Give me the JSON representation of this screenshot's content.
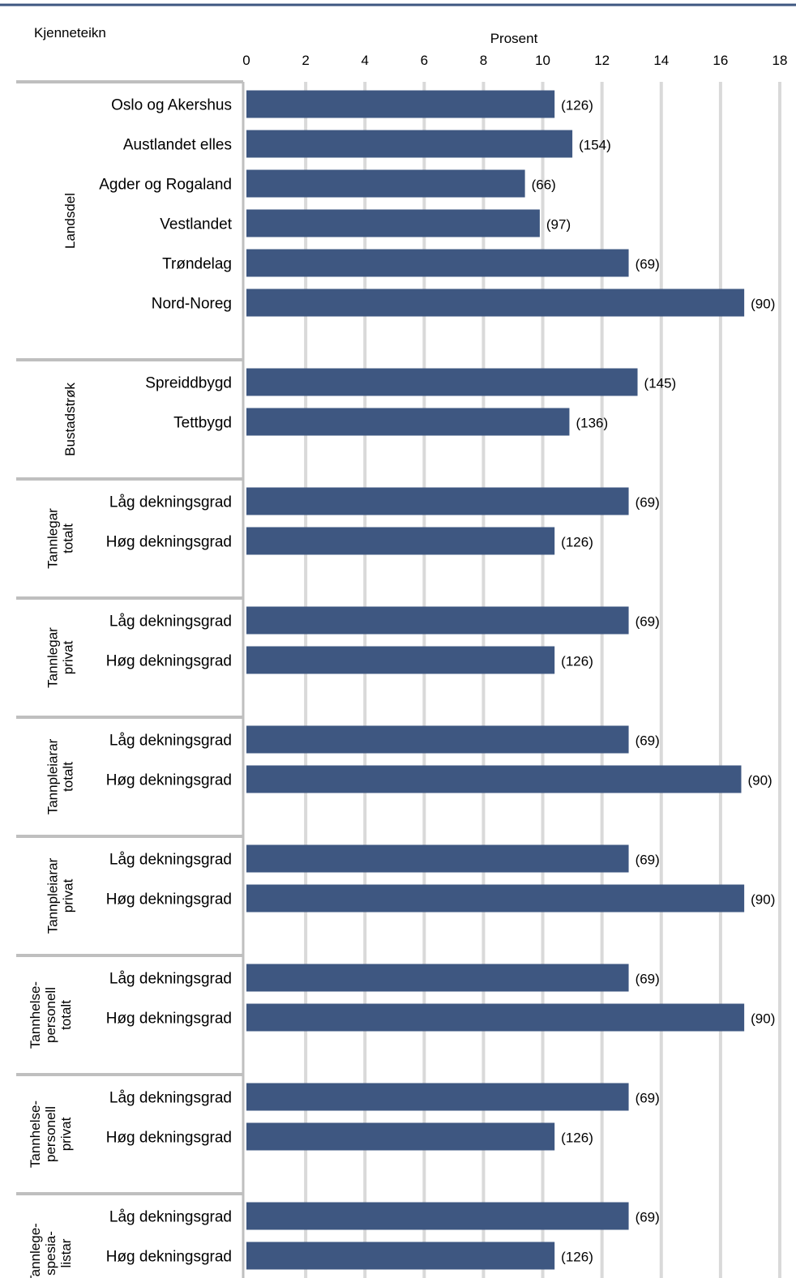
{
  "chart_data": {
    "type": "bar",
    "orientation": "horizontal",
    "title": "",
    "header_left": "Kjenneteikn",
    "xlabel": "Prosent",
    "xlim": [
      0,
      18
    ],
    "xticks": [
      "0",
      "2",
      "4",
      "6",
      "8",
      "10",
      "12",
      "14",
      "16",
      "18"
    ],
    "grid": true,
    "bar_color": "#3e5781",
    "groups": [
      {
        "name": "Landsdel",
        "name_lines": [
          "Landsdel"
        ],
        "items": [
          {
            "label": "Oslo og Akershus",
            "value": 10.4,
            "n": "(126)"
          },
          {
            "label": "Austlandet elles",
            "value": 11.0,
            "n": "(154)"
          },
          {
            "label": "Agder og Rogaland",
            "value": 9.4,
            "n": "(66)"
          },
          {
            "label": "Vestlandet",
            "value": 9.9,
            "n": "(97)"
          },
          {
            "label": "Trøndelag",
            "value": 12.9,
            "n": "(69)"
          },
          {
            "label": "Nord-Noreg",
            "value": 16.8,
            "n": "(90)"
          }
        ]
      },
      {
        "name": "Bustadstrøk",
        "name_lines": [
          "Bustadstrøk"
        ],
        "items": [
          {
            "label": "Spreiddbygd",
            "value": 13.2,
            "n": "(145)"
          },
          {
            "label": "Tettbygd",
            "value": 10.9,
            "n": "(136)"
          }
        ]
      },
      {
        "name": "Tannlegar totalt",
        "name_lines": [
          "Tannlegar",
          "totalt"
        ],
        "items": [
          {
            "label": "Låg dekningsgrad",
            "value": 12.9,
            "n": "(69)"
          },
          {
            "label": "Høg dekningsgrad",
            "value": 10.4,
            "n": "(126)"
          }
        ]
      },
      {
        "name": "Tannlegar privat",
        "name_lines": [
          "Tannlegar",
          "privat"
        ],
        "items": [
          {
            "label": "Låg dekningsgrad",
            "value": 12.9,
            "n": "(69)"
          },
          {
            "label": "Høg dekningsgrad",
            "value": 10.4,
            "n": "(126)"
          }
        ]
      },
      {
        "name": "Tannpleiarar totalt",
        "name_lines": [
          "Tannpleiarar",
          "totalt"
        ],
        "items": [
          {
            "label": "Låg dekningsgrad",
            "value": 12.9,
            "n": "(69)"
          },
          {
            "label": "Høg dekningsgrad",
            "value": 16.7,
            "n": "(90)"
          }
        ]
      },
      {
        "name": "Tannpleiarar privat",
        "name_lines": [
          "Tannpleiarar",
          "privat"
        ],
        "items": [
          {
            "label": "Låg dekningsgrad",
            "value": 12.9,
            "n": "(69)"
          },
          {
            "label": "Høg dekningsgrad",
            "value": 16.8,
            "n": "(90)"
          }
        ]
      },
      {
        "name": "Tannhelse-personell totalt",
        "name_lines": [
          "Tannhelse-",
          "personell",
          "totalt"
        ],
        "items": [
          {
            "label": "Låg dekningsgrad",
            "value": 12.9,
            "n": "(69)"
          },
          {
            "label": "Høg dekningsgrad",
            "value": 16.8,
            "n": "(90)"
          }
        ]
      },
      {
        "name": "Tannhelse-personell privat",
        "name_lines": [
          "Tannhelse-",
          "personell",
          "privat"
        ],
        "items": [
          {
            "label": "Låg dekningsgrad",
            "value": 12.9,
            "n": "(69)"
          },
          {
            "label": "Høg dekningsgrad",
            "value": 10.4,
            "n": "(126)"
          }
        ]
      },
      {
        "name": "Tannlege-spesia-listar",
        "name_lines": [
          "Tannlege-",
          "spesia-",
          "listar"
        ],
        "items": [
          {
            "label": "Låg dekningsgrad",
            "value": 12.9,
            "n": "(69)"
          },
          {
            "label": "Høg dekningsgrad",
            "value": 10.4,
            "n": "(126)"
          }
        ]
      }
    ]
  }
}
